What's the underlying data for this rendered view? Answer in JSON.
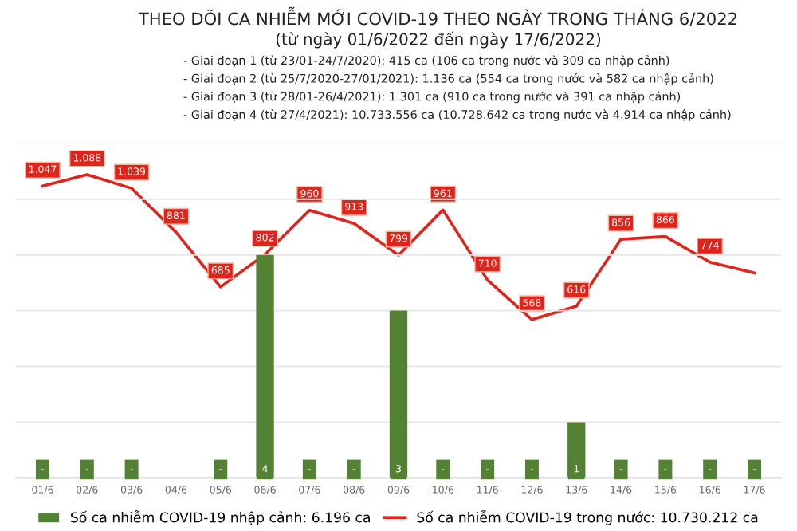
{
  "chart_data": {
    "type": "bar",
    "title": "THEO DÕI CA NHIỄM MỚI COVID-19 THEO NGÀY TRONG THÁNG 6/2022",
    "subtitle": "(từ ngày 01/6/2022 đến ngày 17/6/2022)",
    "annotations": [
      "- Giai đoạn 1 (từ 23/01-24/7/2020): 415 ca (106 ca trong nước và 309 ca nhập cảnh)",
      "- Giai đoạn 2 (từ 25/7/2020-27/01/2021): 1.136 ca (554 ca trong nước và 582 ca nhập cảnh)",
      "- Giai đoạn 3 (từ 28/01-26/4/2021): 1.301 ca (910 ca trong nước và 391 ca nhập cảnh)",
      "- Giai đoạn 4 (từ 27/4/2021): 10.733.556 ca (10.728.642 ca trong nước và 4.914 ca nhập cảnh)"
    ],
    "categories": [
      "01/6",
      "02/6",
      "03/6",
      "04/6",
      "05/6",
      "06/6",
      "07/6",
      "08/6",
      "09/6",
      "10/6",
      "11/6",
      "12/6",
      "13/6",
      "14/6",
      "15/6",
      "16/6",
      "17/6"
    ],
    "series": [
      {
        "name": "Số ca nhiễm COVID-19 nhập cảnh: 6.196 ca",
        "color": "#548235",
        "values": [
          0,
          0,
          0,
          0,
          0,
          4,
          0,
          0,
          3,
          0,
          0,
          0,
          1,
          0,
          0,
          0,
          0
        ],
        "value_labels": [
          "-",
          "-",
          "-",
          null,
          "-",
          "4",
          "-",
          "-",
          "3",
          "-",
          "-",
          "-",
          "1",
          "-",
          "-",
          "-",
          "-"
        ]
      },
      {
        "name": "Số ca nhiễm COVID-19 trong nước: 10.730.212 ca",
        "type": "line",
        "axis": "y2",
        "color": "#e0241b",
        "values": [
          1047,
          1088,
          1039,
          881,
          685,
          802,
          960,
          913,
          799,
          961,
          710,
          568,
          616,
          856,
          866,
          774,
          735
        ],
        "value_labels": [
          "1.047",
          "1.088",
          "1.039",
          "881",
          "685",
          "802",
          "960",
          "913",
          "799",
          "961",
          "710",
          "568",
          "616",
          "856",
          "866",
          "774",
          null
        ]
      }
    ],
    "ylim": [
      0,
      6
    ],
    "yticks": [
      {
        "value": 0,
        "label": null
      },
      {
        "value": 1,
        "label": null
      },
      {
        "value": 2,
        "label": null
      },
      {
        "value": 3,
        "label": null
      },
      {
        "value": 4,
        "label": null
      },
      {
        "value": 5,
        "label": null
      },
      {
        "value": 6,
        "label": null
      }
    ],
    "y2lim": [
      0,
      1200
    ],
    "tick_labels": "x",
    "grid": "y",
    "legend": "bottom",
    "marker": "none",
    "line_style": "solid"
  }
}
